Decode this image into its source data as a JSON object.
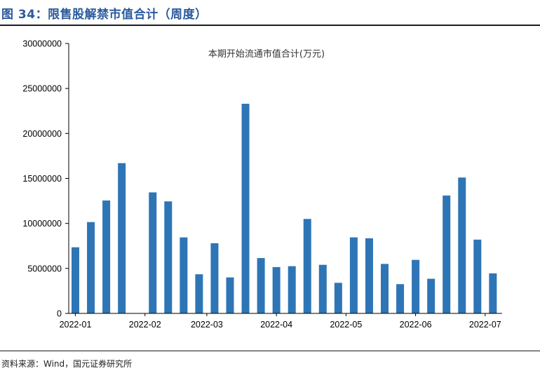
{
  "figure": {
    "title": "图 34：限售股解禁市值合计（周度）",
    "source": "资料来源：Wind，国元证券研究所"
  },
  "colors": {
    "bar": "#2e75b6",
    "axis": "#000000"
  },
  "chart_data": {
    "type": "bar",
    "title": "本期开始流通市值合计(万元)",
    "xlabel": "",
    "ylabel": "",
    "ylim": [
      0,
      30000000
    ],
    "yticks": [
      0,
      5000000,
      10000000,
      15000000,
      20000000,
      25000000,
      30000000
    ],
    "yticklabels": [
      "0",
      "5000000",
      "10000000",
      "15000000",
      "20000000",
      "25000000",
      "30000000"
    ],
    "x_month_labels": [
      {
        "label": "2022-01",
        "index": 0
      },
      {
        "label": "2022-02",
        "index": 4.5
      },
      {
        "label": "2022-03",
        "index": 8.5
      },
      {
        "label": "2022-04",
        "index": 13
      },
      {
        "label": "2022-05",
        "index": 17.5
      },
      {
        "label": "2022-06",
        "index": 22
      },
      {
        "label": "2022-07",
        "index": 26.5
      }
    ],
    "values": [
      7350000,
      10150000,
      12550000,
      16700000,
      0,
      13450000,
      12450000,
      8450000,
      4350000,
      7800000,
      4000000,
      23300000,
      6150000,
      5150000,
      5250000,
      10500000,
      5400000,
      3400000,
      8450000,
      8350000,
      5500000,
      3250000,
      5950000,
      3850000,
      13100000,
      15100000,
      8200000,
      4450000
    ],
    "grid": false,
    "legend": "none"
  }
}
